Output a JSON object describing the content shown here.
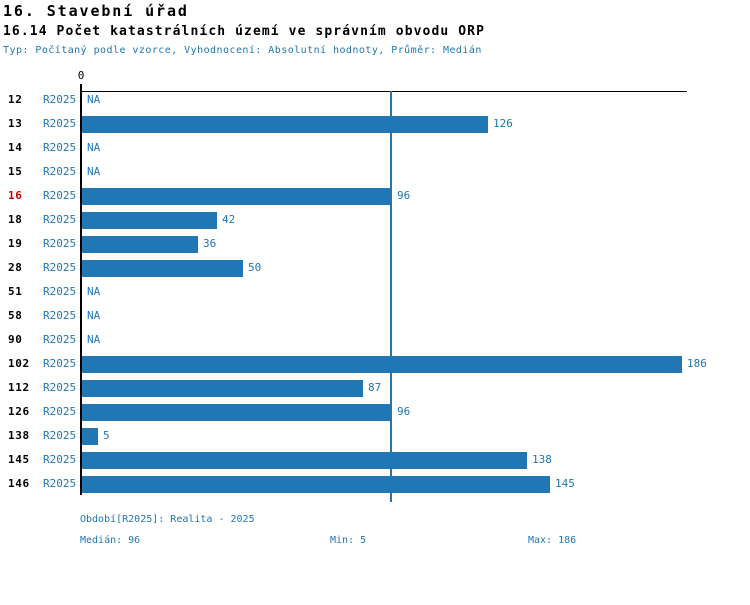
{
  "header": {
    "title": "16. Stavební úřad",
    "subtitle": "16.14 Počet katastrálních území ve správním obvodu ORP",
    "meta": "Typ: Počítaný podle vzorce, Vyhodnocení: Absolutní hodnoty, Průměr: Medián"
  },
  "chart_data": {
    "type": "bar",
    "orientation": "horizontal",
    "title": "16.14 Počet katastrálních území ve správním obvodu ORP",
    "xlabel": "",
    "ylabel": "",
    "xlim": [
      0,
      186
    ],
    "axis_zero_label": "0",
    "grid": false,
    "median_reference_line": 96,
    "na_text": "NA",
    "series_name": "R2025",
    "categories": [
      "12",
      "13",
      "14",
      "15",
      "16",
      "18",
      "19",
      "28",
      "51",
      "58",
      "90",
      "102",
      "112",
      "126",
      "138",
      "145",
      "146"
    ],
    "rows": [
      {
        "label": "12",
        "series": "R2025",
        "value": null,
        "display": "NA",
        "highlight": false
      },
      {
        "label": "13",
        "series": "R2025",
        "value": 126,
        "display": "126",
        "highlight": false
      },
      {
        "label": "14",
        "series": "R2025",
        "value": null,
        "display": "NA",
        "highlight": false
      },
      {
        "label": "15",
        "series": "R2025",
        "value": null,
        "display": "NA",
        "highlight": false
      },
      {
        "label": "16",
        "series": "R2025",
        "value": 96,
        "display": "96",
        "highlight": true
      },
      {
        "label": "18",
        "series": "R2025",
        "value": 42,
        "display": "42",
        "highlight": false
      },
      {
        "label": "19",
        "series": "R2025",
        "value": 36,
        "display": "36",
        "highlight": false
      },
      {
        "label": "28",
        "series": "R2025",
        "value": 50,
        "display": "50",
        "highlight": false
      },
      {
        "label": "51",
        "series": "R2025",
        "value": null,
        "display": "NA",
        "highlight": false
      },
      {
        "label": "58",
        "series": "R2025",
        "value": null,
        "display": "NA",
        "highlight": false
      },
      {
        "label": "90",
        "series": "R2025",
        "value": null,
        "display": "NA",
        "highlight": false
      },
      {
        "label": "102",
        "series": "R2025",
        "value": 186,
        "display": "186",
        "highlight": false
      },
      {
        "label": "112",
        "series": "R2025",
        "value": 87,
        "display": "87",
        "highlight": false
      },
      {
        "label": "126",
        "series": "R2025",
        "value": 96,
        "display": "96",
        "highlight": false
      },
      {
        "label": "138",
        "series": "R2025",
        "value": 5,
        "display": "5",
        "highlight": false
      },
      {
        "label": "145",
        "series": "R2025",
        "value": 138,
        "display": "138",
        "highlight": false
      },
      {
        "label": "146",
        "series": "R2025",
        "value": 145,
        "display": "145",
        "highlight": false
      }
    ],
    "colors": {
      "bar": "#2077b4",
      "blue_text": "#2077b4",
      "median_line": "#2077b4",
      "highlight_red": "#d40000",
      "axis": "#000000"
    }
  },
  "footer": {
    "period": "Období[R2025]: Realita - 2025",
    "median": "Medián: 96",
    "min": "Min: 5",
    "max": "Max: 186"
  }
}
